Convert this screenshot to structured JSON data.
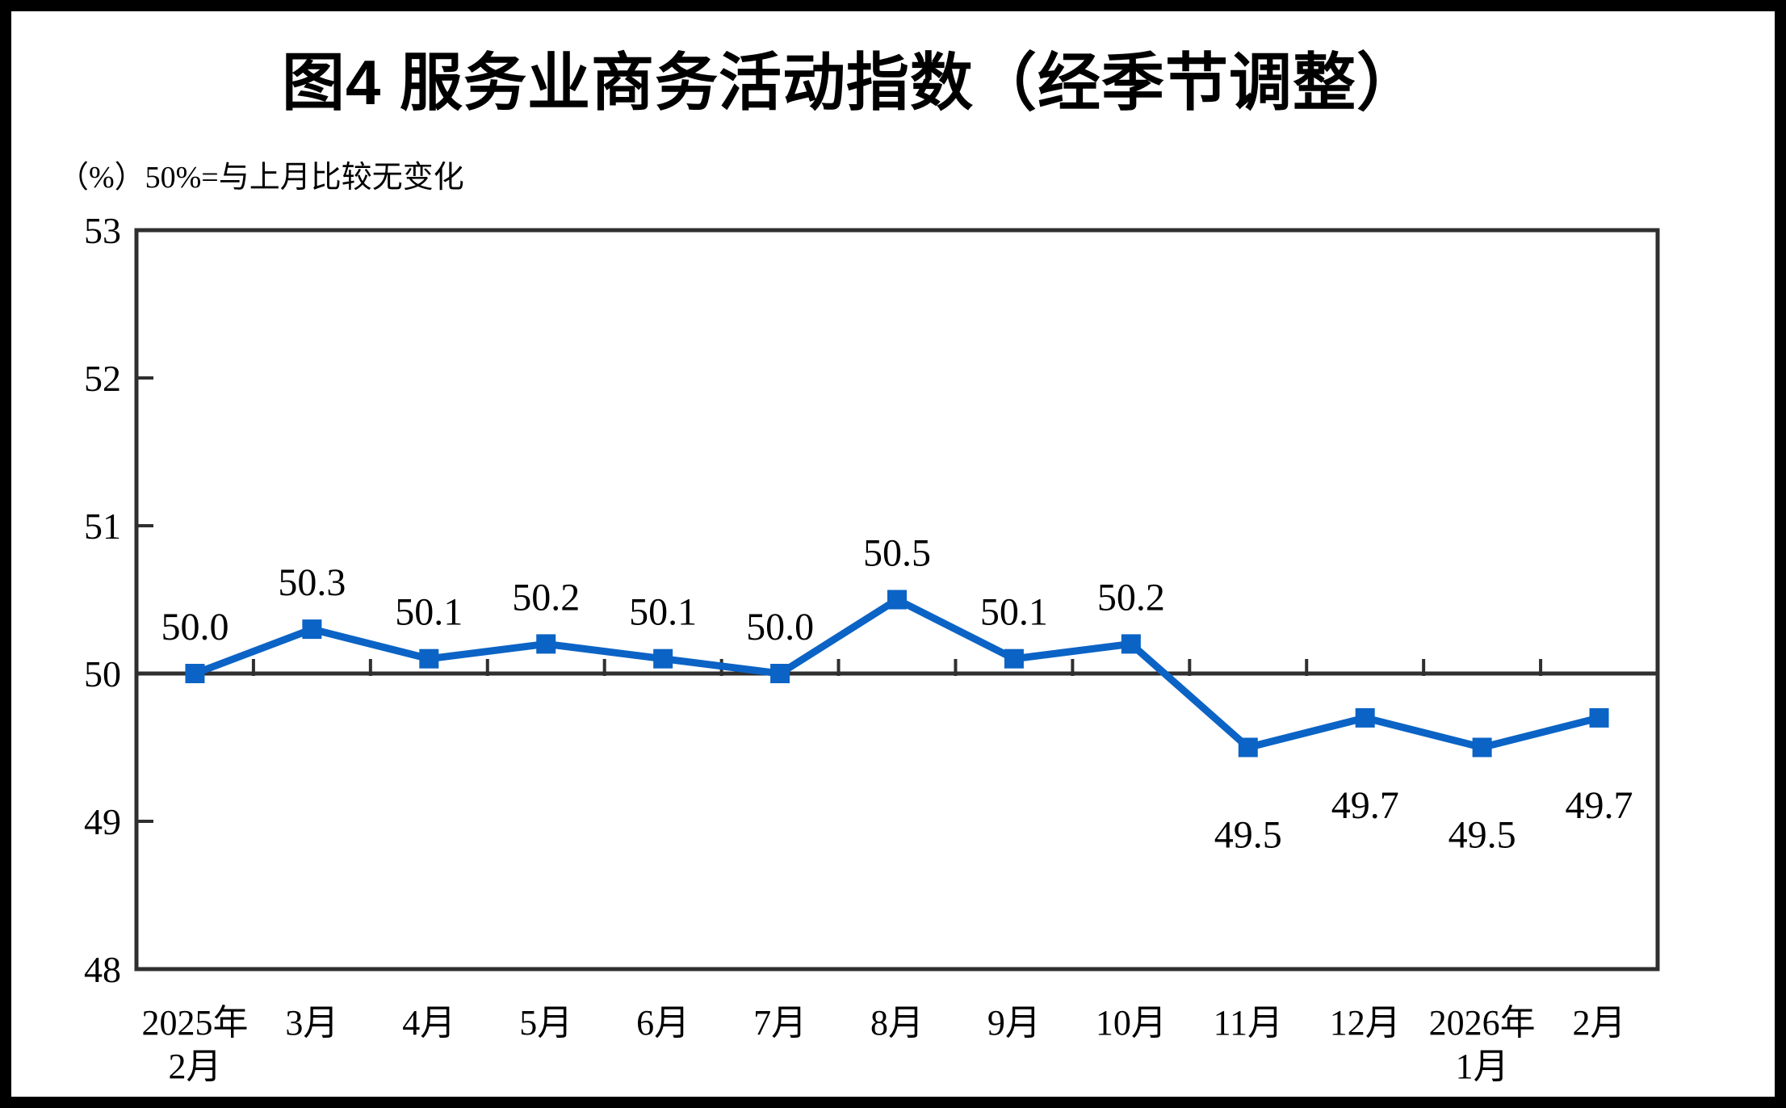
{
  "header": {
    "title": "图4 服务业商务活动指数（经季节调整）",
    "unit_note": "（%）50%=与上月比较无变化"
  },
  "chart_data": {
    "type": "line",
    "title": "图4 服务业商务活动指数（经季节调整）",
    "subtitle": "（%）50%=与上月比较无变化",
    "unit": "%",
    "categories": [
      [
        "2025年",
        "2月"
      ],
      [
        "3月"
      ],
      [
        "4月"
      ],
      [
        "5月"
      ],
      [
        "6月"
      ],
      [
        "7月"
      ],
      [
        "8月"
      ],
      [
        "9月"
      ],
      [
        "10月"
      ],
      [
        "11月"
      ],
      [
        "12月"
      ],
      [
        "2026年",
        "1月"
      ],
      [
        "2月"
      ]
    ],
    "values": [
      50.0,
      50.3,
      50.1,
      50.2,
      50.1,
      50.0,
      50.5,
      50.1,
      50.2,
      49.5,
      49.7,
      49.5,
      49.7
    ],
    "labels": [
      "50.0",
      "50.3",
      "50.1",
      "50.2",
      "50.1",
      "50.0",
      "50.5",
      "50.1",
      "50.2",
      "49.5",
      "49.7",
      "49.5",
      "49.7"
    ],
    "ylim": [
      48,
      53
    ],
    "yticks": [
      48,
      49,
      50,
      51,
      52,
      53
    ],
    "baseline_value": 50,
    "grid": false,
    "legend": "none",
    "marker": "square",
    "line_color": "#0B63C5",
    "axis_color": "#2F2F2F",
    "label_color": "#000000"
  }
}
